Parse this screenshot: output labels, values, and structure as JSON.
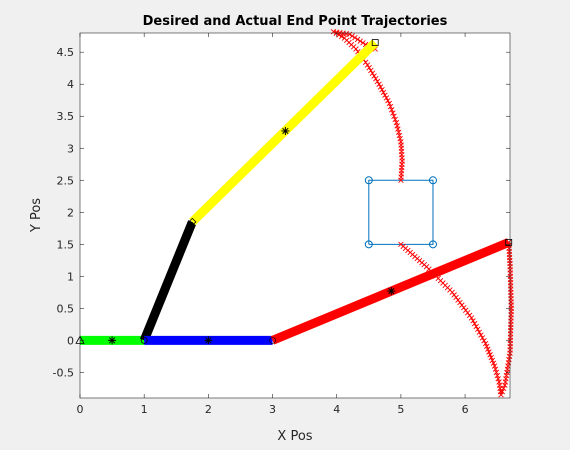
{
  "chart_data": {
    "type": "line",
    "title": "Desired and Actual End Point Trajectories",
    "xlabel": "X Pos",
    "ylabel": "Y Pos",
    "xlim": [
      0,
      6.7
    ],
    "ylim": [
      -0.9,
      4.8
    ],
    "xticks": [
      0,
      1,
      2,
      3,
      4,
      5,
      6
    ],
    "yticks": [
      -0.5,
      0,
      0.5,
      1,
      1.5,
      2,
      2.5,
      3,
      3.5,
      4,
      4.5
    ],
    "xtick_labels": [
      "0",
      "1",
      "2",
      "3",
      "4",
      "5",
      "6"
    ],
    "ytick_labels": [
      "-0.5",
      "0",
      "0.5",
      "1",
      "1.5",
      "2",
      "2.5",
      "3",
      "3.5",
      "4",
      "4.5"
    ],
    "grid": false,
    "colors": {
      "green": "#00ff00",
      "black": "#000000",
      "yellow": "#ffff00",
      "blue": "#0000ff",
      "red": "#ff0000",
      "target": "#0072bd"
    },
    "links": [
      {
        "color": "#00ff00",
        "from": [
          0,
          0
        ],
        "to": [
          1,
          0
        ],
        "mid": [
          0.5,
          0
        ]
      },
      {
        "color": "#000000",
        "from": [
          1,
          0
        ],
        "to": [
          1.75,
          1.85
        ]
      },
      {
        "color": "#ffff00",
        "from": [
          1.75,
          1.85
        ],
        "to": [
          4.6,
          4.65
        ],
        "mid": [
          3.2,
          3.27
        ]
      },
      {
        "color": "#0000ff",
        "from": [
          1,
          0
        ],
        "to": [
          3,
          0
        ],
        "mid": [
          2,
          0
        ]
      },
      {
        "color": "#ff0000",
        "from": [
          3,
          0
        ],
        "to": [
          6.68,
          1.53
        ],
        "mid": [
          4.85,
          0.77
        ]
      }
    ],
    "base_marker": [
      0,
      0
    ],
    "target_square": [
      [
        4.5,
        1.5
      ],
      [
        5.5,
        1.5
      ],
      [
        5.5,
        2.5
      ],
      [
        4.5,
        2.5
      ]
    ],
    "upper_trajectory": [
      [
        5.0,
        2.5
      ],
      [
        5.02,
        2.8
      ],
      [
        5.0,
        3.1
      ],
      [
        4.93,
        3.4
      ],
      [
        4.82,
        3.7
      ],
      [
        4.66,
        4.0
      ],
      [
        4.48,
        4.3
      ],
      [
        4.3,
        4.55
      ],
      [
        4.12,
        4.72
      ],
      [
        3.95,
        4.82
      ],
      [
        4.2,
        4.78
      ],
      [
        4.45,
        4.62
      ],
      [
        4.6,
        4.55
      ]
    ],
    "lower_trajectory": [
      [
        5.0,
        1.5
      ],
      [
        5.4,
        1.15
      ],
      [
        5.8,
        0.75
      ],
      [
        6.1,
        0.35
      ],
      [
        6.32,
        -0.05
      ],
      [
        6.46,
        -0.4
      ],
      [
        6.53,
        -0.65
      ],
      [
        6.56,
        -0.85
      ],
      [
        6.62,
        -0.7
      ],
      [
        6.7,
        -0.2
      ],
      [
        6.72,
        0.5
      ],
      [
        6.7,
        1.2
      ],
      [
        6.68,
        1.53
      ]
    ],
    "end_points": [
      [
        4.6,
        4.65
      ],
      [
        6.68,
        1.53
      ]
    ]
  }
}
